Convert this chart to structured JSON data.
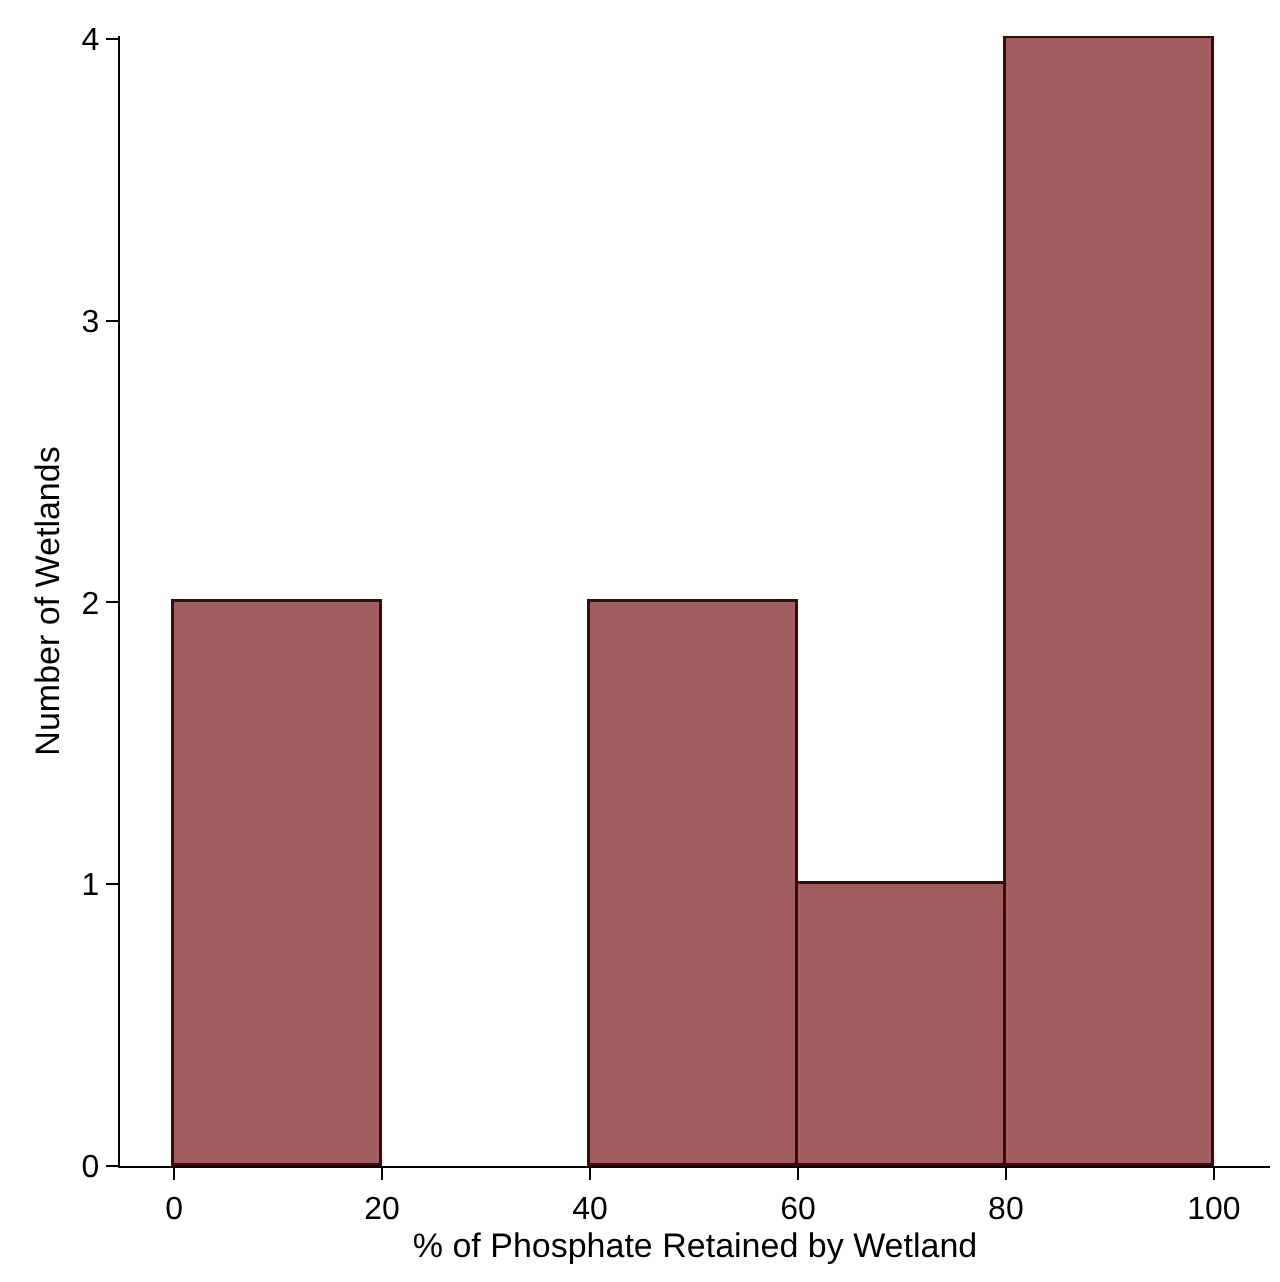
{
  "chart_data": {
    "type": "histogram",
    "xlabel": "% of Phosphate Retained by Wetland",
    "ylabel": "Number of Wetlands",
    "bins": [
      0,
      20,
      40,
      60,
      80,
      100
    ],
    "values": [
      2,
      0,
      2,
      1,
      4
    ],
    "color": "#a05e5e",
    "xlim": [
      -5.2,
      105.4
    ],
    "xticks": [
      0,
      20,
      40,
      60,
      80,
      100
    ],
    "ylim": [
      0,
      4.01
    ],
    "yticks": [
      0,
      1,
      2,
      3,
      4
    ]
  }
}
